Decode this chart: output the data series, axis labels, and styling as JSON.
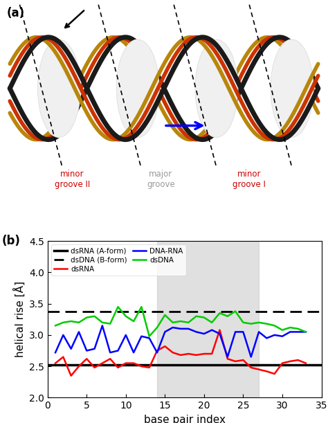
{
  "xlabel": "base pair index",
  "ylabel": "helical rise [Å]",
  "ylim": [
    2.0,
    4.5
  ],
  "xlim": [
    0,
    35
  ],
  "xticks": [
    0,
    5,
    10,
    15,
    20,
    25,
    30,
    35
  ],
  "yticks": [
    2.0,
    2.5,
    3.0,
    3.5,
    4.0,
    4.5
  ],
  "gray_region": [
    14,
    27
  ],
  "dsdna_bform_level": 3.38,
  "gray_color": "#cccccc",
  "dsRNA_Aform_y_val": 2.52,
  "dsRNA_x": [
    1,
    2,
    3,
    4,
    5,
    6,
    7,
    8,
    9,
    10,
    11,
    12,
    13,
    14,
    15,
    16,
    17,
    18,
    19,
    20,
    21,
    22,
    23,
    24,
    25,
    26,
    27,
    28,
    29,
    30,
    31,
    32,
    33
  ],
  "dsRNA_y": [
    2.55,
    2.65,
    2.35,
    2.5,
    2.62,
    2.48,
    2.55,
    2.62,
    2.48,
    2.55,
    2.55,
    2.5,
    2.48,
    2.75,
    2.82,
    2.72,
    2.68,
    2.7,
    2.68,
    2.7,
    2.7,
    3.08,
    2.62,
    2.58,
    2.6,
    2.48,
    2.45,
    2.42,
    2.38,
    2.55,
    2.58,
    2.6,
    2.55
  ],
  "DNARNA_x": [
    1,
    2,
    3,
    4,
    5,
    6,
    7,
    8,
    9,
    10,
    11,
    12,
    13,
    14,
    15,
    16,
    17,
    18,
    19,
    20,
    21,
    22,
    23,
    24,
    25,
    26,
    27,
    28,
    29,
    30,
    31,
    32,
    33
  ],
  "DNARNA_y": [
    2.72,
    3.0,
    2.78,
    3.05,
    2.75,
    2.78,
    3.15,
    2.72,
    2.75,
    3.0,
    2.72,
    2.98,
    2.95,
    2.72,
    3.05,
    3.12,
    3.1,
    3.1,
    3.05,
    3.02,
    3.08,
    3.02,
    2.65,
    3.05,
    3.05,
    2.65,
    3.05,
    2.95,
    3.0,
    2.98,
    3.05,
    3.05,
    3.05
  ],
  "dsDNA_x": [
    1,
    2,
    3,
    4,
    5,
    6,
    7,
    8,
    9,
    10,
    11,
    12,
    13,
    14,
    15,
    16,
    17,
    18,
    19,
    20,
    21,
    22,
    23,
    24,
    25,
    26,
    27,
    28,
    29,
    30,
    31,
    32,
    33
  ],
  "dsDNA_y": [
    3.15,
    3.2,
    3.22,
    3.2,
    3.28,
    3.3,
    3.2,
    3.18,
    3.45,
    3.3,
    3.22,
    3.45,
    2.98,
    3.12,
    3.32,
    3.2,
    3.22,
    3.2,
    3.3,
    3.28,
    3.2,
    3.35,
    3.3,
    3.38,
    3.2,
    3.18,
    3.2,
    3.18,
    3.15,
    3.08,
    3.12,
    3.1,
    3.05
  ],
  "helix_colors": [
    "#1a1a1a",
    "#cc3300",
    "#b8860b",
    "#c8c8c8"
  ],
  "helix_phases": [
    0.0,
    0.25,
    0.5,
    1.57
  ],
  "helix_lws": [
    5,
    4,
    4,
    3
  ],
  "minor_groove2_label": "minor\ngroove II",
  "major_groove_label": "major\ngroove",
  "minor_groove1_label": "minor\ngroove I",
  "minor_groove2_color": "#cc0000",
  "major_groove_color": "#999999",
  "minor_groove1_color": "#cc0000"
}
